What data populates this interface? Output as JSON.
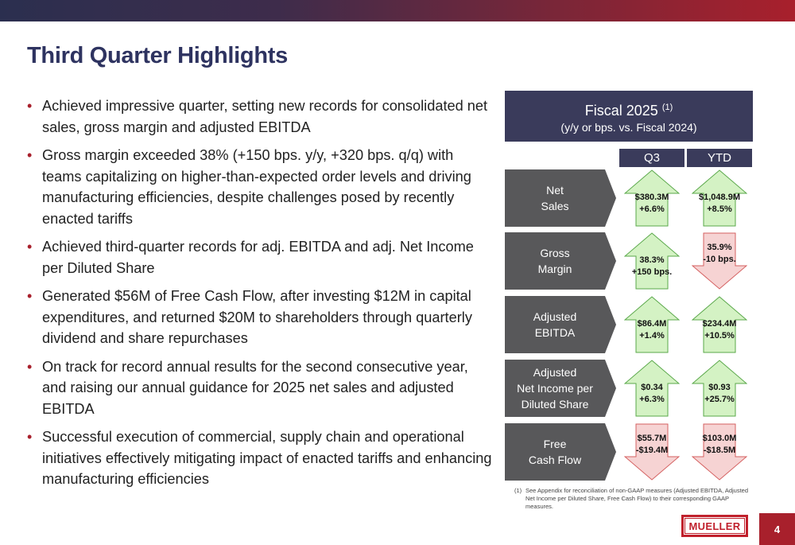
{
  "title": "Third Quarter Highlights",
  "bullets": [
    "Achieved impressive quarter, setting new records for consolidated net sales, gross margin and adjusted EBITDA",
    "Gross margin exceeded 38% (+150 bps. y/y, +320 bps. q/q) with teams capitalizing on higher-than-expected order levels and driving manufacturing efficiencies, despite challenges posed by recently enacted tariffs",
    "Achieved third-quarter records for adj. EBITDA and adj. Net Income per Diluted Share",
    "Generated $56M of Free Cash Flow, after investing $12M in capital expenditures, and returned $20M to shareholders through quarterly dividend and share repurchases",
    "On track for record annual results for the second consecutive year, and raising our annual guidance for 2025 net sales and adjusted EBITDA",
    "Successful execution of commercial, supply chain and operational initiatives effectively mitigating impact of enacted tariffs and enhancing manufacturing efficiencies"
  ],
  "bullet_marker": "•",
  "panel": {
    "title": "Fiscal 2025",
    "title_note": "(1)",
    "subtitle": "(y/y or bps. vs. Fiscal 2024)",
    "col_q3": "Q3",
    "col_ytd": "YTD",
    "metrics": [
      {
        "label1": "Net",
        "label2": "Sales",
        "label3": "",
        "q3": {
          "value": "$380.3M",
          "change": "+6.6%",
          "direction": "up"
        },
        "ytd": {
          "value": "$1,048.9M",
          "change": "+8.5%",
          "direction": "up"
        }
      },
      {
        "label1": "Gross",
        "label2": "Margin",
        "label3": "",
        "q3": {
          "value": "38.3%",
          "change": "+150 bps.",
          "direction": "up"
        },
        "ytd": {
          "value": "35.9%",
          "change": "-10 bps.",
          "direction": "down"
        }
      },
      {
        "label1": "Adjusted",
        "label2": "EBITDA",
        "label3": "",
        "q3": {
          "value": "$86.4M",
          "change": "+1.4%",
          "direction": "up"
        },
        "ytd": {
          "value": "$234.4M",
          "change": "+10.5%",
          "direction": "up"
        }
      },
      {
        "label1": "Adjusted",
        "label2": "Net Income per",
        "label3": "Diluted Share",
        "q3": {
          "value": "$0.34",
          "change": "+6.3%",
          "direction": "up"
        },
        "ytd": {
          "value": "$0.93",
          "change": "+25.7%",
          "direction": "up"
        }
      },
      {
        "label1": "Free",
        "label2": "Cash Flow",
        "label3": "",
        "q3": {
          "value": "$55.7M",
          "change": "-$19.4M",
          "direction": "down"
        },
        "ytd": {
          "value": "$103.0M",
          "change": "-$18.5M",
          "direction": "down"
        }
      }
    ]
  },
  "footnote": {
    "marker": "(1)",
    "text": "See Appendix for reconciliation of non-GAAP measures (Adjusted EBITDA, Adjusted Net Income per Diluted Share, Free Cash Flow) to their corresponding GAAP measures."
  },
  "logo_text": "MUELLER",
  "page_number": "4",
  "colors": {
    "navy": "#3a3b5b",
    "title": "#2e3360",
    "accent_red": "#a8202c",
    "metric_gray": "#58585a",
    "up_fill": "#d4f2c4",
    "up_stroke": "#5aa84a",
    "down_fill": "#f6d3d3",
    "down_stroke": "#d46060"
  }
}
